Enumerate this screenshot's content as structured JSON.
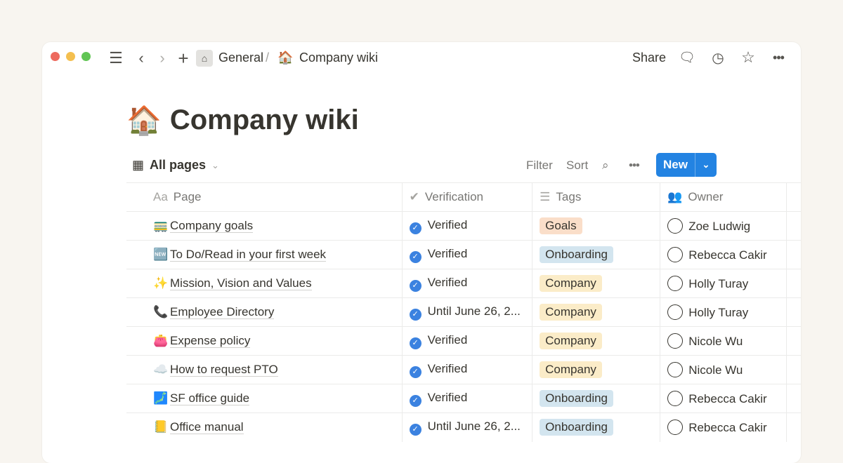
{
  "window": {
    "traffic_colors": [
      "#ed6a5e",
      "#f4bf4f",
      "#61c554"
    ]
  },
  "breadcrumb": {
    "parent": "General",
    "separator": "/",
    "current": "Company wiki",
    "current_icon": "🏠"
  },
  "topbar": {
    "share": "Share"
  },
  "page": {
    "icon": "🏠",
    "title": "Company wiki"
  },
  "view": {
    "name": "All pages"
  },
  "toolbar": {
    "filter": "Filter",
    "sort": "Sort",
    "new": "New"
  },
  "table": {
    "headers": [
      {
        "icon": "Aa",
        "label": "Page"
      },
      {
        "icon": "verified-icon",
        "label": "Verification"
      },
      {
        "icon": "list-icon",
        "label": "Tags"
      },
      {
        "icon": "people-icon",
        "label": "Owner"
      }
    ],
    "rows": [
      {
        "icon": "🚃",
        "page": "Company goals",
        "verification": "Verified",
        "tag": "Goals",
        "tag_color": "#fadec9",
        "owner": "Zoe Ludwig"
      },
      {
        "icon": "🆕",
        "page": "To Do/Read in your first week",
        "verification": "Verified",
        "tag": "Onboarding",
        "tag_color": "#d3e5ef",
        "owner": "Rebecca Cakir"
      },
      {
        "icon": "✨",
        "page": "Mission, Vision and Values",
        "verification": "Verified",
        "tag": "Company",
        "tag_color": "#fbecc8",
        "owner": "Holly Turay"
      },
      {
        "icon": "📞",
        "page": "Employee Directory",
        "verification": "Until June 26, 2...",
        "tag": "Company",
        "tag_color": "#fbecc8",
        "owner": "Holly Turay"
      },
      {
        "icon": "👛",
        "page": "Expense policy",
        "verification": "Verified",
        "tag": "Company",
        "tag_color": "#fbecc8",
        "owner": "Nicole Wu"
      },
      {
        "icon": "☁️",
        "page": "How to request PTO",
        "verification": "Verified",
        "tag": "Company",
        "tag_color": "#fbecc8",
        "owner": "Nicole Wu"
      },
      {
        "icon": "🗾",
        "page": "SF office guide",
        "verification": "Verified",
        "tag": "Onboarding",
        "tag_color": "#d3e5ef",
        "owner": "Rebecca Cakir"
      },
      {
        "icon": "📒",
        "page": "Office manual",
        "verification": "Until June 26, 2...",
        "tag": "Onboarding",
        "tag_color": "#d3e5ef",
        "owner": "Rebecca Cakir"
      }
    ]
  }
}
